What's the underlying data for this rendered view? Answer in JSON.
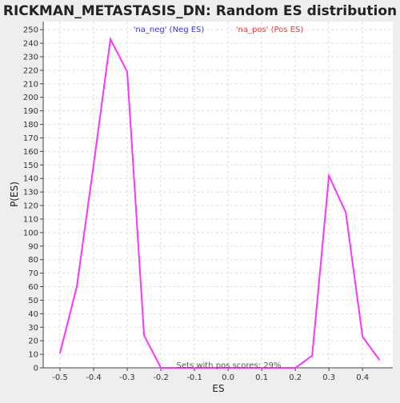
{
  "chart_data": {
    "type": "line",
    "title": "RICKMAN_METASTASIS_DN: Random ES distribution",
    "xlabel": "ES",
    "ylabel": "P(ES)",
    "xlim": [
      -0.55,
      0.49
    ],
    "ylim": [
      0,
      256
    ],
    "x_ticks": [
      -0.5,
      -0.4,
      -0.3,
      -0.2,
      -0.1,
      0.0,
      0.1,
      0.2,
      0.3,
      0.4
    ],
    "x_tick_labels": [
      "-0.5",
      "-0.4",
      "-0.3",
      "-0.2",
      "-0.1",
      "0.0",
      "0.1",
      "0.2",
      "0.3",
      "0.4"
    ],
    "y_ticks": [
      0,
      10,
      20,
      30,
      40,
      50,
      60,
      70,
      80,
      90,
      100,
      110,
      120,
      130,
      140,
      150,
      160,
      170,
      180,
      190,
      200,
      210,
      220,
      230,
      240,
      250
    ],
    "grid": true,
    "legend": [
      {
        "label": "'na_neg' (Neg ES)",
        "color": "#3333ff"
      },
      {
        "label": "'na_pos' (Pos ES)",
        "color": "#ff3333"
      }
    ],
    "line_color": "#ff33ff",
    "series": [
      {
        "x": [
          -0.5,
          -0.45,
          -0.4,
          -0.35,
          -0.3,
          -0.25,
          -0.2,
          -0.15,
          -0.1,
          -0.05,
          0.0,
          0.05,
          0.1,
          0.15,
          0.2,
          0.25,
          0.3,
          0.35,
          0.4,
          0.45
        ],
        "y": [
          11,
          60,
          150,
          243,
          219,
          24,
          0,
          0,
          0,
          0,
          0,
          0,
          0,
          0,
          0,
          9,
          142,
          115,
          23,
          6
        ]
      }
    ],
    "annotation": "Sets with pos scores: 29%"
  }
}
